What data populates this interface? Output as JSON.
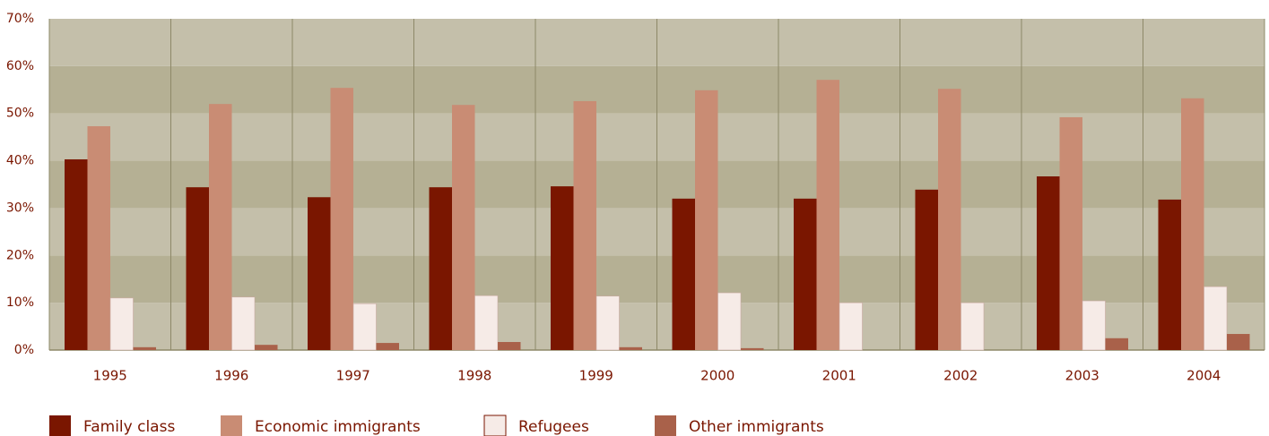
{
  "chart_data": {
    "type": "bar",
    "categories": [
      "1995",
      "1996",
      "1997",
      "1998",
      "1999",
      "2000",
      "2001",
      "2002",
      "2003",
      "2004"
    ],
    "series": [
      {
        "name": "Family class",
        "color": "#7a1600",
        "values": [
          40.3,
          34.4,
          32.3,
          34.4,
          34.6,
          32.0,
          32.0,
          33.9,
          36.7,
          31.8
        ]
      },
      {
        "name": "Economic immigrants",
        "color": "#c98c74",
        "values": [
          47.3,
          52.0,
          55.4,
          51.8,
          52.6,
          54.9,
          57.1,
          55.2,
          49.2,
          53.2
        ]
      },
      {
        "name": "Refugees",
        "color": "#f6ebe7",
        "values": [
          11.0,
          11.2,
          9.8,
          11.5,
          11.4,
          12.1,
          10.0,
          10.0,
          10.4,
          13.4
        ]
      },
      {
        "name": "Other immigrants",
        "color": "#a9614a",
        "values": [
          0.6,
          1.1,
          1.5,
          1.7,
          0.6,
          0.4,
          0,
          0,
          2.5,
          3.4
        ]
      }
    ],
    "ylim": [
      0,
      70
    ],
    "yticks": [
      {
        "value": 0,
        "label": "0%"
      },
      {
        "value": 10,
        "label": "10%"
      },
      {
        "value": 20,
        "label": "20%"
      },
      {
        "value": 30,
        "label": "30%"
      },
      {
        "value": 40,
        "label": "40%"
      },
      {
        "value": 50,
        "label": "50%"
      },
      {
        "value": 60,
        "label": "60%"
      },
      {
        "value": 70,
        "label": "70%"
      }
    ],
    "legend": "bottom"
  }
}
